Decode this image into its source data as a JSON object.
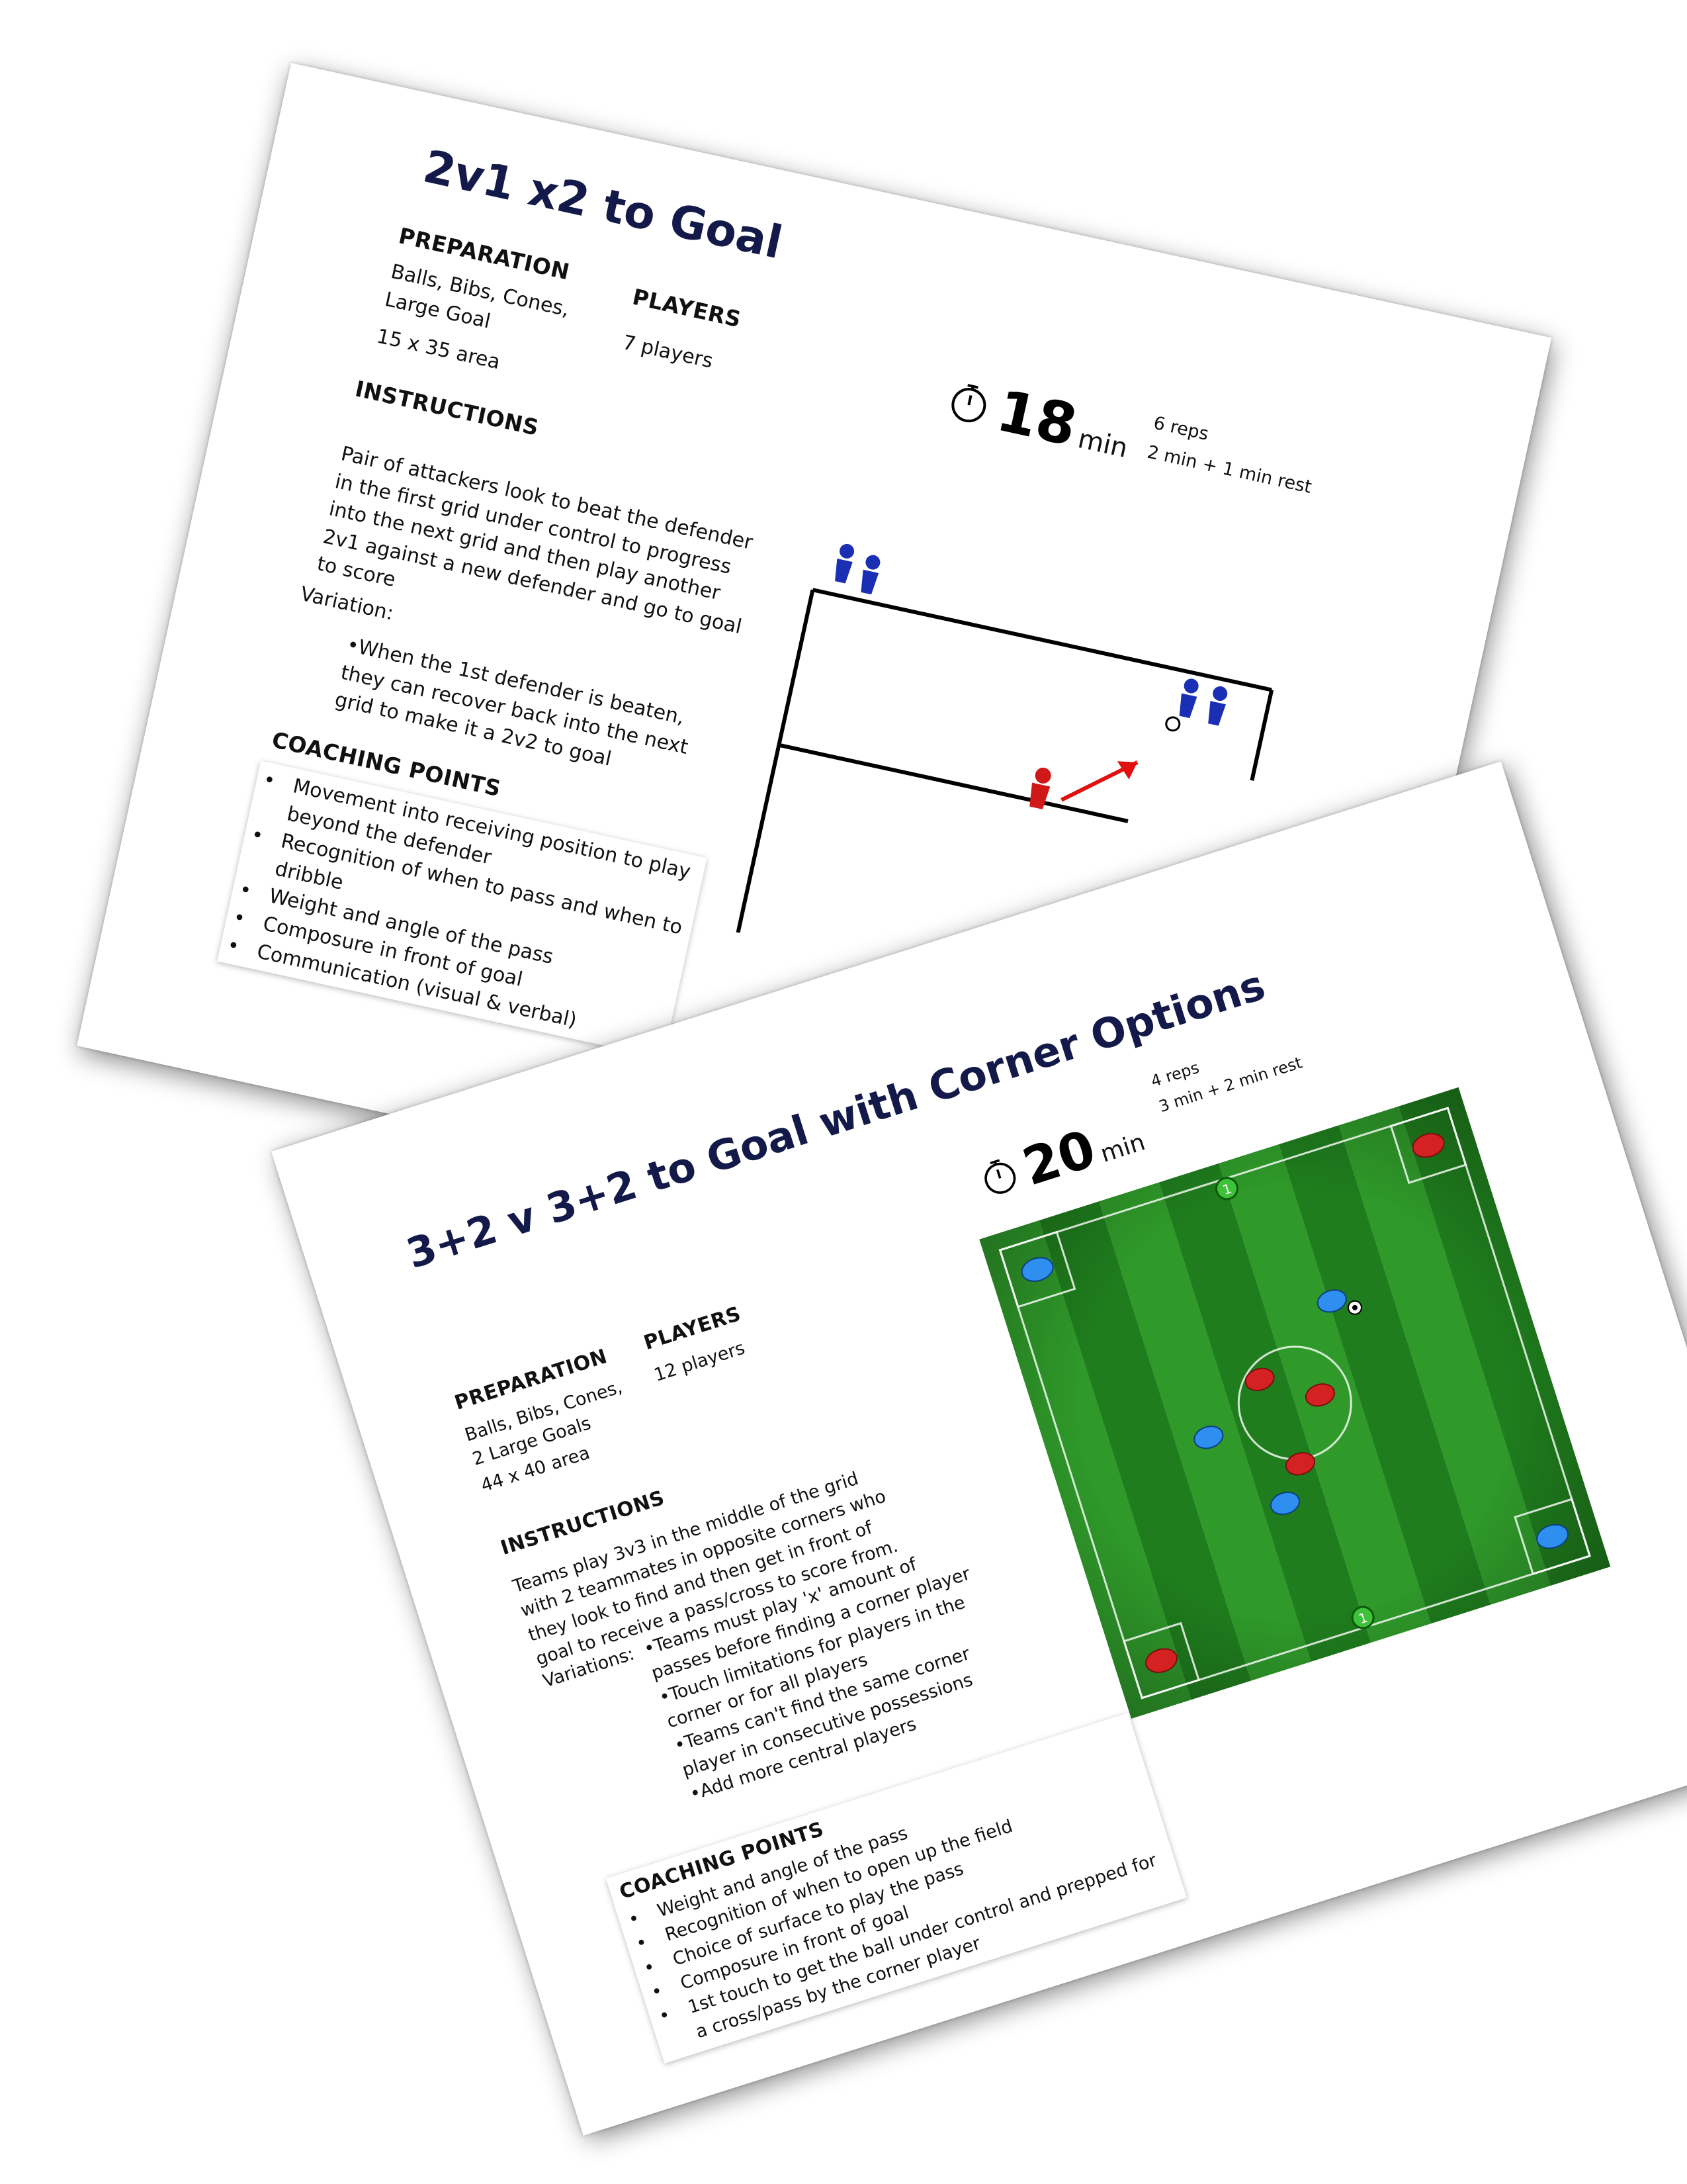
{
  "sheets": [
    {
      "title": "2v1 x2 to Goal",
      "preparation": {
        "heading": "PREPARATION",
        "items": [
          "Balls, Bibs, Cones, Large Goal",
          "15 x 35 area"
        ]
      },
      "players": {
        "heading": "PLAYERS",
        "value": "7 players"
      },
      "timer": {
        "minutes": "18",
        "unit": "min",
        "reps": "6 reps",
        "schedule": "2 min + 1 min rest"
      },
      "instructions": {
        "heading": "INSTRUCTIONS",
        "text": "Pair of attackers look to beat the defender in the first grid under control to progress into the next grid and then play another 2v1 against a new defender and go to goal to score",
        "variation_label": "Variation:",
        "variations": [
          "•When the 1st defender is beaten, they can recover back into the next grid to make it a 2v2 to goal"
        ]
      },
      "coaching": {
        "heading": "COACHING POINTS",
        "points": [
          "Movement into receiving position to play beyond the defender",
          "Recognition of when to pass and when to dribble",
          "Weight and angle of the pass",
          "Composure in front of goal",
          "Communication (visual & verbal)"
        ]
      },
      "diagram_icons": [
        "player-icon",
        "ball-icon",
        "arrow-icon"
      ],
      "colors": {
        "title": "#131a4a",
        "attacker": "#1b2fb5",
        "defender": "#d01818"
      }
    },
    {
      "title": "3+2 v 3+2 to Goal with Corner Options",
      "preparation": {
        "heading": "PREPARATION",
        "items": [
          "Balls, Bibs, Cones, 2 Large Goals",
          "44 x 40 area"
        ]
      },
      "players": {
        "heading": "PLAYERS",
        "value": "12 players"
      },
      "timer": {
        "minutes": "20",
        "unit": "min",
        "reps": "4 reps",
        "schedule": "3 min + 2 min rest"
      },
      "instructions": {
        "heading": "INSTRUCTIONS",
        "text": "Teams play 3v3 in the middle of the grid with 2 teammates in opposite corners who they look to find and then get in front of goal to receive a pass/cross to score from.",
        "variation_label": "Variations:",
        "variations": [
          "•Teams must play 'x' amount of passes before finding a corner player",
          "•Touch limitations for players in the corner or for all players",
          "•Teams can't find the same corner player in consecutive possessions",
          "•Add more central players"
        ]
      },
      "coaching": {
        "heading": "COACHING POINTS",
        "points": [
          "Weight and angle of the pass",
          "Recognition of when to open up the field",
          "Choice of surface to play the pass",
          "Composure in front of goal",
          "1st touch to get the ball under control and prepped for a cross/pass by the corner player"
        ]
      },
      "pitch": {
        "keeper_number": "1"
      },
      "colors": {
        "title": "#131a4a",
        "grass_light": "#2f9a2a",
        "grass_dark": "#1f7d1d",
        "red_team": "#d42222",
        "blue_team": "#2f8ff0",
        "keeper": "#3ec23a"
      }
    }
  ]
}
